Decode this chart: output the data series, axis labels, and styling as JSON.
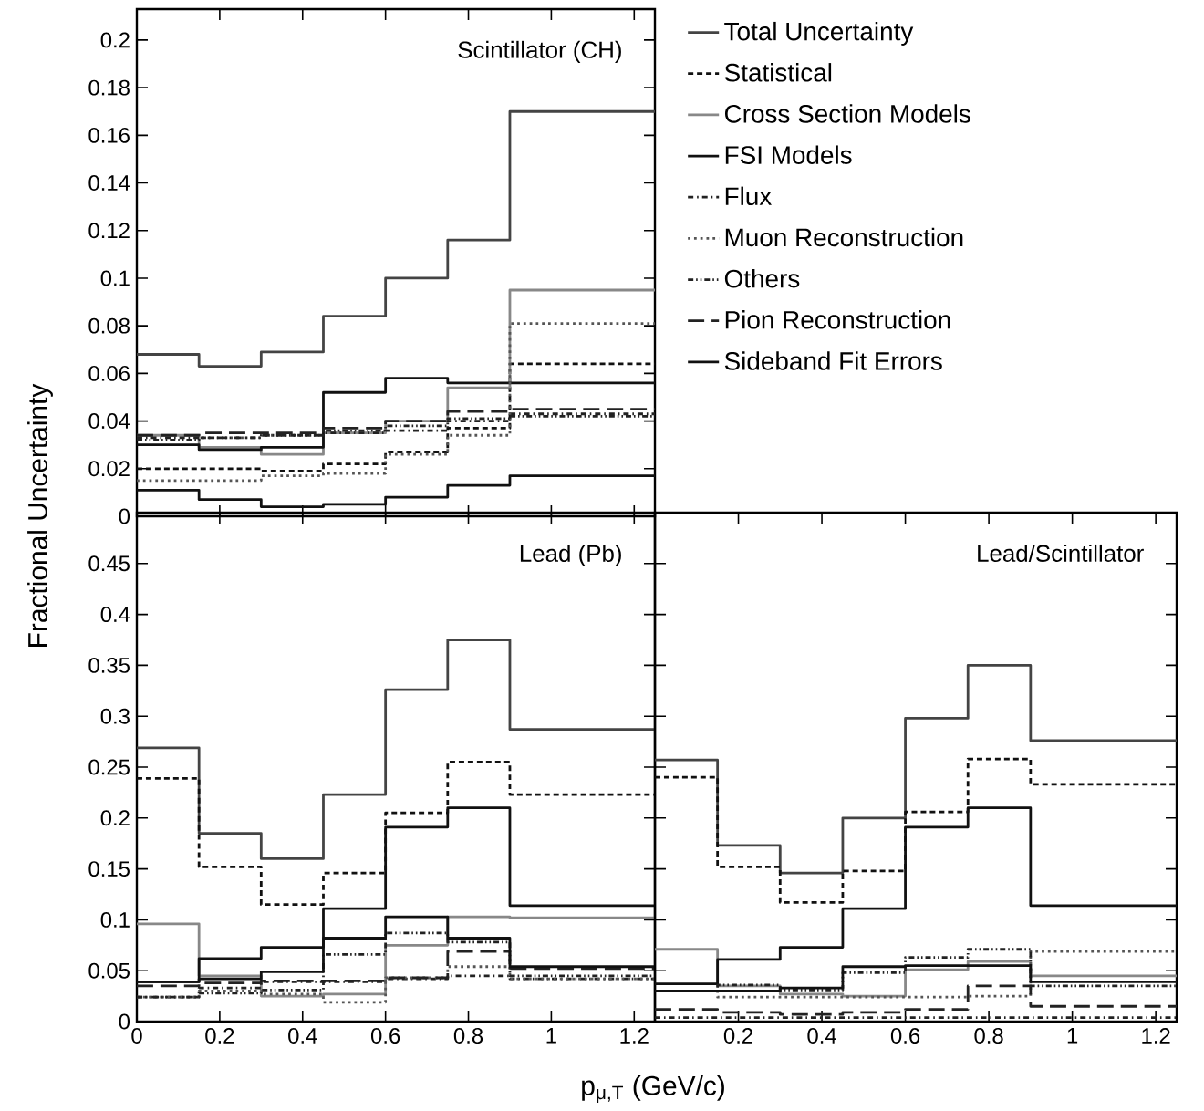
{
  "chart_data": [
    {
      "type": "step",
      "title": "Scintillator (CH)",
      "ylabel": "Fractional Uncertainty",
      "legend": "right",
      "tick_labels": "y",
      "x": [
        0,
        0.15,
        0.3,
        0.45,
        0.6,
        0.75,
        0.9,
        1.25
      ],
      "xlim": [
        0,
        1.25
      ],
      "ylim": [
        0,
        0.213
      ],
      "xticks": [
        0,
        0.2,
        0.4,
        0.6,
        0.8,
        1,
        1.2
      ],
      "yticks": [
        0,
        0.02,
        0.04,
        0.06,
        0.08,
        0.1,
        0.12,
        0.14,
        0.16,
        0.18,
        0.2
      ],
      "series": [
        {
          "name": "Total Uncertainty",
          "color": "#444444",
          "line_style": "solid",
          "values": [
            0.068,
            0.063,
            0.069,
            0.084,
            0.1,
            0.116,
            0.17,
            0.17
          ]
        },
        {
          "name": "Statistical",
          "color": "#111111",
          "line_style": "dashed",
          "values": [
            0.02,
            0.02,
            0.019,
            0.022,
            0.027,
            0.037,
            0.064,
            0.064
          ]
        },
        {
          "name": "Cross Section Models",
          "color": "#888888",
          "line_style": "solid",
          "values": [
            0.034,
            0.029,
            0.026,
            0.035,
            0.04,
            0.054,
            0.095,
            0.095
          ]
        },
        {
          "name": "FSI Models",
          "color": "#111111",
          "line_style": "solid",
          "values": [
            0.03,
            0.028,
            0.029,
            0.052,
            0.058,
            0.056,
            0.056,
            0.056
          ]
        },
        {
          "name": "Flux",
          "color": "#222222",
          "line_style": "dashdot",
          "values": [
            0.033,
            0.033,
            0.034,
            0.035,
            0.036,
            0.04,
            0.043,
            0.043
          ]
        },
        {
          "name": "Muon Reconstruction",
          "color": "#555555",
          "line_style": "dotted",
          "values": [
            0.015,
            0.015,
            0.017,
            0.018,
            0.026,
            0.034,
            0.081,
            0.081
          ]
        },
        {
          "name": "Others",
          "color": "#222222",
          "line_style": "dashdotdot",
          "values": [
            0.032,
            0.033,
            0.034,
            0.036,
            0.038,
            0.041,
            0.042,
            0.042
          ]
        },
        {
          "name": "Pion Reconstruction",
          "color": "#222222",
          "line_style": "longdash",
          "values": [
            0.034,
            0.035,
            0.035,
            0.037,
            0.04,
            0.044,
            0.045,
            0.045
          ]
        },
        {
          "name": "Sideband Fit Errors",
          "color": "#111111",
          "line_style": "solid",
          "values": [
            0.011,
            0.007,
            0.004,
            0.005,
            0.008,
            0.013,
            0.017,
            0.017
          ]
        }
      ]
    },
    {
      "type": "step",
      "title": "Lead (Pb)",
      "xlabel": "p$_{μ,T}$ (GeV/c)",
      "x": [
        0,
        0.15,
        0.3,
        0.45,
        0.6,
        0.75,
        0.9,
        1.25
      ],
      "xlim": [
        0,
        1.25
      ],
      "ylim": [
        0,
        0.5
      ],
      "xticks": [
        0,
        0.2,
        0.4,
        0.6,
        0.8,
        1,
        1.2
      ],
      "yticks": [
        0,
        0.05,
        0.1,
        0.15,
        0.2,
        0.25,
        0.3,
        0.35,
        0.4,
        0.45
      ],
      "series": [
        {
          "color": "#444444",
          "line_style": "solid",
          "values": [
            0.269,
            0.185,
            0.16,
            0.223,
            0.326,
            0.375,
            0.287,
            0.287
          ]
        },
        {
          "color": "#111111",
          "line_style": "dashed",
          "values": [
            0.239,
            0.152,
            0.115,
            0.146,
            0.205,
            0.255,
            0.223,
            0.223
          ]
        },
        {
          "color": "#888888",
          "line_style": "solid",
          "values": [
            0.096,
            0.045,
            0.025,
            0.027,
            0.075,
            0.103,
            0.102,
            0.102
          ]
        },
        {
          "color": "#111111",
          "line_style": "solid",
          "values": [
            0.039,
            0.062,
            0.073,
            0.111,
            0.191,
            0.21,
            0.114,
            0.114
          ]
        },
        {
          "color": "#222222",
          "line_style": "dashdot",
          "values": [
            0.024,
            0.033,
            0.039,
            0.039,
            0.042,
            0.045,
            0.042,
            0.042
          ]
        },
        {
          "color": "#555555",
          "line_style": "dotted",
          "values": [
            0.024,
            0.03,
            0.027,
            0.019,
            0.043,
            0.054,
            0.042,
            0.042
          ]
        },
        {
          "color": "#222222",
          "line_style": "dashdotdot",
          "values": [
            0.024,
            0.028,
            0.031,
            0.066,
            0.087,
            0.078,
            0.045,
            0.045
          ]
        },
        {
          "color": "#222222",
          "line_style": "longdash",
          "values": [
            0.035,
            0.038,
            0.04,
            0.04,
            0.043,
            0.069,
            0.052,
            0.052
          ]
        },
        {
          "color": "#111111",
          "line_style": "solid",
          "values": [
            0.039,
            0.042,
            0.049,
            0.082,
            0.103,
            0.082,
            0.054,
            0.054
          ]
        }
      ]
    },
    {
      "type": "step",
      "title": "Lead/Scintillator",
      "tick_labels": "x",
      "x": [
        0,
        0.15,
        0.3,
        0.45,
        0.6,
        0.75,
        0.9,
        1.25
      ],
      "xlim": [
        0,
        1.25
      ],
      "ylim": [
        0,
        0.5
      ],
      "xticks": [
        {
          "value": 0,
          "label": null
        },
        0.2,
        0.4,
        0.6,
        0.8,
        1,
        1.2
      ],
      "yticks": [
        0,
        0.05,
        0.1,
        0.15,
        0.2,
        0.25,
        0.3,
        0.35,
        0.4,
        0.45
      ],
      "series": [
        {
          "color": "#444444",
          "line_style": "solid",
          "values": [
            0.257,
            0.173,
            0.146,
            0.2,
            0.298,
            0.35,
            0.276,
            0.276
          ]
        },
        {
          "color": "#111111",
          "line_style": "dashed",
          "values": [
            0.24,
            0.152,
            0.117,
            0.148,
            0.206,
            0.258,
            0.233,
            0.233
          ]
        },
        {
          "color": "#888888",
          "line_style": "solid",
          "values": [
            0.071,
            0.035,
            0.027,
            0.025,
            0.051,
            0.059,
            0.045,
            0.045
          ]
        },
        {
          "color": "#111111",
          "line_style": "solid",
          "values": [
            0.037,
            0.061,
            0.073,
            0.111,
            0.191,
            0.21,
            0.114,
            0.114
          ]
        },
        {
          "color": "#222222",
          "line_style": "dashdot",
          "values": [
            0.004,
            0.004,
            0.004,
            0.004,
            0.004,
            0.004,
            0.004,
            0.004
          ]
        },
        {
          "color": "#555555",
          "line_style": "dotted",
          "values": [
            0.03,
            0.024,
            0.024,
            0.024,
            0.024,
            0.025,
            0.069,
            0.069
          ]
        },
        {
          "color": "#222222",
          "line_style": "dashdotdot",
          "values": [
            0.03,
            0.036,
            0.031,
            0.048,
            0.063,
            0.071,
            0.035,
            0.035
          ]
        },
        {
          "color": "#222222",
          "line_style": "longdash",
          "values": [
            0.012,
            0.009,
            0.007,
            0.009,
            0.012,
            0.035,
            0.015,
            0.015
          ]
        },
        {
          "color": "#111111",
          "line_style": "solid",
          "values": [
            0.03,
            0.03,
            0.033,
            0.054,
            0.055,
            0.055,
            0.039,
            0.039
          ]
        }
      ]
    }
  ]
}
